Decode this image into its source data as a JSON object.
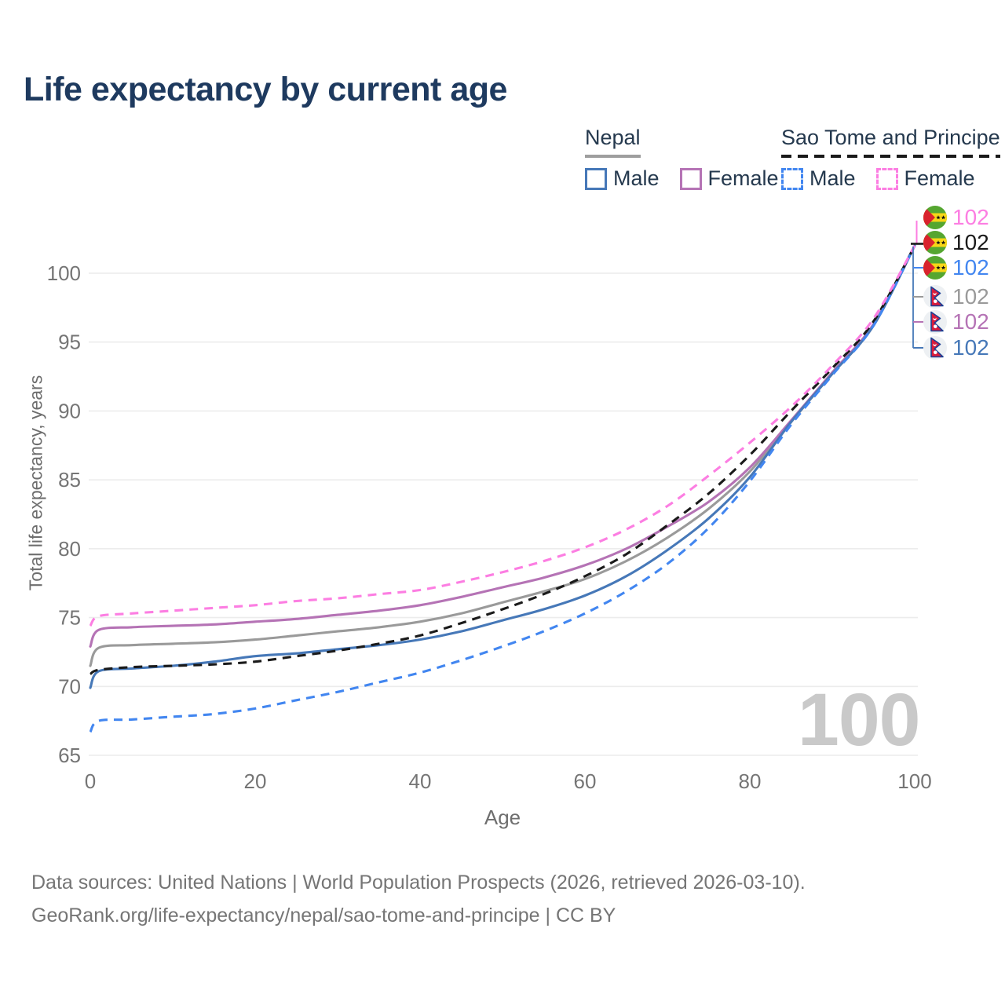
{
  "title": "Life expectancy by current age",
  "watermark": "100",
  "legend": {
    "groups": [
      {
        "title": "Nepal",
        "underline_style": "solid",
        "underline_color": "#9e9e9e",
        "items": [
          {
            "label": "Male",
            "color": "#4678b8",
            "dash": false
          },
          {
            "label": "Female",
            "color": "#b573b5",
            "dash": false
          }
        ]
      },
      {
        "title": "Sao Tome and Principe",
        "underline_style": "dashed",
        "underline_color": "#1a1a1a",
        "items": [
          {
            "label": "Male",
            "color": "#4286f0",
            "dash": true
          },
          {
            "label": "Female",
            "color": "#fc7ee2",
            "dash": true
          }
        ]
      }
    ]
  },
  "y_axis": {
    "title": "Total life expectancy, years",
    "ticks": [
      65,
      70,
      75,
      80,
      85,
      90,
      95,
      100
    ]
  },
  "x_axis": {
    "title": "Age",
    "ticks": [
      0,
      20,
      40,
      60,
      80,
      100
    ]
  },
  "right_labels": [
    {
      "value": "102",
      "flag": "sao-tome-and-principe",
      "color": "#fc7ee2",
      "series": "Sao Tome and Principe Female"
    },
    {
      "value": "102",
      "flag": "sao-tome-and-principe",
      "color": "#1a1a1a",
      "series": "Sao Tome and Principe Both sexes"
    },
    {
      "value": "102",
      "flag": "sao-tome-and-principe",
      "color": "#4286f0",
      "series": "Sao Tome and Principe Male"
    },
    {
      "value": "102",
      "flag": "nepal",
      "color": "#9a9a9a",
      "series": "Nepal Both sexes"
    },
    {
      "value": "102",
      "flag": "nepal",
      "color": "#b573b5",
      "series": "Nepal Female"
    },
    {
      "value": "102",
      "flag": "nepal",
      "color": "#4678b8",
      "series": "Nepal Male"
    }
  ],
  "footer": {
    "line1": "Data sources: United Nations | World Population Prospects (2026, retrieved 2026-03-10).",
    "line2": "GeoRank.org/life-expectancy/nepal/sao-tome-and-principe | CC BY"
  },
  "chart_data": {
    "type": "line",
    "title": "Life expectancy by current age",
    "xlabel": "Age",
    "ylabel": "Total life expectancy, years",
    "xlim": [
      0,
      100
    ],
    "ylim": [
      63.5,
      103
    ],
    "grid": "horizontal",
    "legend_position": "top-right",
    "x": [
      0,
      1,
      5,
      10,
      15,
      20,
      25,
      30,
      35,
      40,
      45,
      50,
      55,
      60,
      65,
      70,
      75,
      80,
      85,
      90,
      95,
      100
    ],
    "series": [
      {
        "name": "Nepal Both sexes",
        "country": "Nepal",
        "sex": "Both",
        "color": "#9a9a9a",
        "dash": "solid",
        "values": [
          71.5,
          72.8,
          73.0,
          73.1,
          73.2,
          73.4,
          73.7,
          74.0,
          74.3,
          74.7,
          75.3,
          76.1,
          76.9,
          77.8,
          79.1,
          80.8,
          82.9,
          85.6,
          89.2,
          92.7,
          96.2,
          102
        ]
      },
      {
        "name": "Nepal Female",
        "country": "Nepal",
        "sex": "Female",
        "color": "#b573b5",
        "dash": "solid",
        "values": [
          72.9,
          74.1,
          74.3,
          74.4,
          74.5,
          74.7,
          74.9,
          75.2,
          75.5,
          75.9,
          76.5,
          77.2,
          77.9,
          78.8,
          80.0,
          81.6,
          83.4,
          85.9,
          89.3,
          92.8,
          96.3,
          102
        ]
      },
      {
        "name": "Nepal Male",
        "country": "Nepal",
        "sex": "Male",
        "color": "#4678b8",
        "dash": "solid",
        "values": [
          69.9,
          71.1,
          71.3,
          71.5,
          71.8,
          72.2,
          72.4,
          72.7,
          73.0,
          73.4,
          74.0,
          74.8,
          75.6,
          76.6,
          78.0,
          79.9,
          82.2,
          85.2,
          89.2,
          92.7,
          96.2,
          102
        ]
      },
      {
        "name": "Sao Tome and Principe Both sexes",
        "country": "Sao Tome and Principe",
        "sex": "Both",
        "color": "#1a1a1a",
        "dash": "dashed",
        "values": [
          70.9,
          71.2,
          71.4,
          71.5,
          71.6,
          71.8,
          72.2,
          72.6,
          73.1,
          73.7,
          74.6,
          75.6,
          76.7,
          78.0,
          79.6,
          81.7,
          84.0,
          86.8,
          90.0,
          93.1,
          96.5,
          102
        ]
      },
      {
        "name": "Sao Tome and Principe Male",
        "country": "Sao Tome and Principe",
        "sex": "Male",
        "color": "#4286f0",
        "dash": "dashed",
        "values": [
          66.7,
          67.5,
          67.6,
          67.8,
          68.0,
          68.4,
          69.0,
          69.6,
          70.3,
          71.0,
          71.9,
          72.9,
          74.0,
          75.3,
          76.9,
          78.9,
          81.5,
          84.9,
          89.0,
          92.6,
          96.2,
          102
        ]
      },
      {
        "name": "Sao Tome and Principe Female",
        "country": "Sao Tome and Principe",
        "sex": "Female",
        "color": "#fc7ee2",
        "dash": "dashed",
        "values": [
          74.4,
          75.1,
          75.3,
          75.5,
          75.7,
          75.9,
          76.2,
          76.4,
          76.7,
          77.0,
          77.6,
          78.3,
          79.1,
          80.1,
          81.4,
          83.1,
          85.3,
          87.7,
          90.3,
          93.3,
          96.7,
          102
        ]
      }
    ],
    "end_value_label": "102"
  }
}
